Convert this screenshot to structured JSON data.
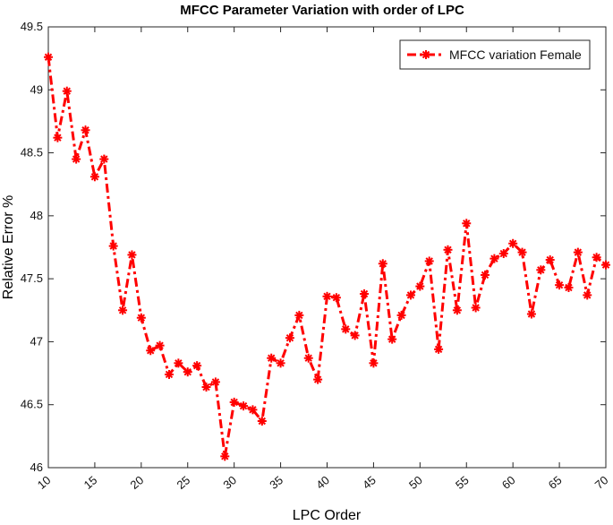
{
  "chart_data": {
    "type": "line",
    "title": "MFCC Parameter Variation with order of LPC",
    "xlabel": "LPC Order",
    "ylabel": "Relative Error %",
    "xlim": [
      10,
      70
    ],
    "ylim": [
      46,
      49.5
    ],
    "xticks": [
      10,
      15,
      20,
      25,
      30,
      35,
      40,
      45,
      50,
      55,
      60,
      65,
      70
    ],
    "yticks": [
      46,
      46.5,
      47,
      47.5,
      48,
      48.5,
      49,
      49.5
    ],
    "grid": false,
    "legend_position": "top-right",
    "series": [
      {
        "name": "MFCC variation Female",
        "color": "#ff0000",
        "line_style": "dash-dot",
        "marker": "asterisk",
        "x": [
          10,
          11,
          12,
          13,
          14,
          15,
          16,
          17,
          18,
          19,
          20,
          21,
          22,
          23,
          24,
          25,
          26,
          27,
          28,
          29,
          30,
          31,
          32,
          33,
          34,
          35,
          36,
          37,
          38,
          39,
          40,
          41,
          42,
          43,
          44,
          45,
          46,
          47,
          48,
          49,
          50,
          51,
          52,
          53,
          54,
          55,
          56,
          57,
          58,
          59,
          60,
          61,
          62,
          63,
          64,
          65,
          66,
          67,
          68,
          69,
          70
        ],
        "y": [
          49.26,
          48.62,
          48.99,
          48.45,
          48.68,
          48.31,
          48.45,
          47.76,
          47.25,
          47.69,
          47.19,
          46.93,
          46.97,
          46.74,
          46.83,
          46.76,
          46.81,
          46.64,
          46.68,
          46.09,
          46.52,
          46.49,
          46.46,
          46.37,
          46.87,
          46.83,
          47.03,
          47.21,
          46.87,
          46.7,
          47.36,
          47.35,
          47.1,
          47.05,
          47.38,
          46.83,
          47.62,
          47.02,
          47.21,
          47.37,
          47.44,
          47.64,
          46.94,
          47.73,
          47.25,
          47.94,
          47.27,
          47.53,
          47.66,
          47.7,
          47.78,
          47.71,
          47.22,
          47.57,
          47.65,
          47.45,
          47.43,
          47.71,
          47.37,
          47.67,
          47.61
        ]
      }
    ]
  }
}
